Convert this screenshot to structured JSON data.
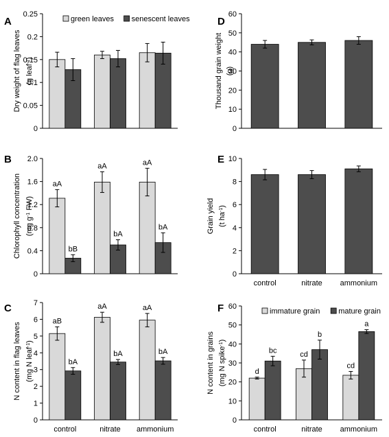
{
  "chart_data": [
    {
      "panel": "A",
      "type": "bar",
      "categories": [
        "control",
        "nitrate",
        "ammonium"
      ],
      "series": [
        {
          "name": "green leaves",
          "values": [
            0.15,
            0.16,
            0.165
          ],
          "errors": [
            0.016,
            0.008,
            0.02
          ],
          "labels": [],
          "color": "#d9d9d9"
        },
        {
          "name": "senescent leaves",
          "values": [
            0.128,
            0.152,
            0.164
          ],
          "errors": [
            0.024,
            0.018,
            0.024
          ],
          "labels": [],
          "color": "#4d4d4d"
        }
      ],
      "ylabel": "Dry weight of flag leaves",
      "yunit": "(g leaf⁻¹)",
      "ylim": [
        0,
        0.25
      ],
      "yticks": [
        "0",
        "0.05",
        "0.1",
        "0.15",
        "0.2",
        "0.25"
      ],
      "legend": "top-left",
      "show_xlabels": false
    },
    {
      "panel": "B",
      "type": "bar",
      "categories": [
        "control",
        "nitrate",
        "ammonium"
      ],
      "series": [
        {
          "values": [
            1.31,
            1.59,
            1.59
          ],
          "errors": [
            0.15,
            0.18,
            0.24
          ],
          "labels": [
            "aA",
            "aA",
            "aA"
          ],
          "color": "#d9d9d9"
        },
        {
          "values": [
            0.27,
            0.5,
            0.54
          ],
          "errors": [
            0.06,
            0.09,
            0.17
          ],
          "labels": [
            "bB",
            "bA",
            "bA"
          ],
          "color": "#4d4d4d"
        }
      ],
      "ylabel": "Chlorophyll concentration",
      "yunit": "(mg g⁻¹ FW)",
      "ylim": [
        0,
        2.0
      ],
      "yticks": [
        "0",
        "0.4",
        "0.8",
        "1.2",
        "1.6",
        "2.0"
      ],
      "show_xlabels": false
    },
    {
      "panel": "C",
      "type": "bar",
      "categories": [
        "control",
        "nitrate",
        "ammonium"
      ],
      "series": [
        {
          "values": [
            5.15,
            6.12,
            5.95
          ],
          "errors": [
            0.4,
            0.3,
            0.4
          ],
          "labels": [
            "aB",
            "aA",
            "aA"
          ],
          "color": "#d9d9d9"
        },
        {
          "values": [
            2.92,
            3.45,
            3.52
          ],
          "errors": [
            0.2,
            0.15,
            0.2
          ],
          "labels": [
            "bA",
            "bA",
            "bA"
          ],
          "color": "#4d4d4d"
        }
      ],
      "ylabel": "N content in flag leaves",
      "yunit": "(mg N leaf⁻¹)",
      "ylim": [
        0,
        7
      ],
      "yticks": [
        "0",
        "1",
        "2",
        "3",
        "4",
        "5",
        "6",
        "7"
      ],
      "show_xlabels": true
    },
    {
      "panel": "D",
      "type": "bar",
      "categories": [
        "control",
        "nitrate",
        "ammonium"
      ],
      "series": [
        {
          "values": [
            44,
            45,
            46
          ],
          "errors": [
            2.0,
            1.3,
            2.0
          ],
          "labels": [],
          "color": "#4d4d4d"
        }
      ],
      "ylabel": "Thousand grain weight",
      "yunit": "(g)",
      "ylim": [
        0,
        60
      ],
      "yticks": [
        "0",
        "10",
        "20",
        "30",
        "40",
        "50",
        "60"
      ],
      "show_xlabels": false
    },
    {
      "panel": "E",
      "type": "bar",
      "categories": [
        "control",
        "nitrate",
        "ammonium"
      ],
      "series": [
        {
          "values": [
            8.6,
            8.6,
            9.1
          ],
          "errors": [
            0.45,
            0.35,
            0.25
          ],
          "labels": [],
          "color": "#4d4d4d"
        }
      ],
      "ylabel": "Grain yield",
      "yunit": "(t ha⁻¹)",
      "ylim": [
        0,
        10
      ],
      "yticks": [
        "0",
        "2",
        "4",
        "6",
        "8",
        "10"
      ],
      "show_xlabels": true
    },
    {
      "panel": "F",
      "type": "bar",
      "categories": [
        "control",
        "nitrate",
        "ammonium"
      ],
      "series": [
        {
          "name": "immature grain",
          "values": [
            22,
            27,
            23.5
          ],
          "errors": [
            0.5,
            4.5,
            2.0
          ],
          "labels": [
            "d",
            "cd",
            "cd"
          ],
          "color": "#d9d9d9"
        },
        {
          "name": "mature grain",
          "values": [
            31,
            37,
            46.5
          ],
          "errors": [
            2.5,
            5.0,
            1.0
          ],
          "labels": [
            "bc",
            "b",
            "a"
          ],
          "color": "#4d4d4d"
        }
      ],
      "ylabel": "N content in grains",
      "yunit": "(mg N spike⁻¹)",
      "ylim": [
        0,
        60
      ],
      "yticks": [
        "0",
        "10",
        "20",
        "30",
        "40",
        "50",
        "60"
      ],
      "legend": "top-left",
      "show_xlabels": true
    }
  ]
}
